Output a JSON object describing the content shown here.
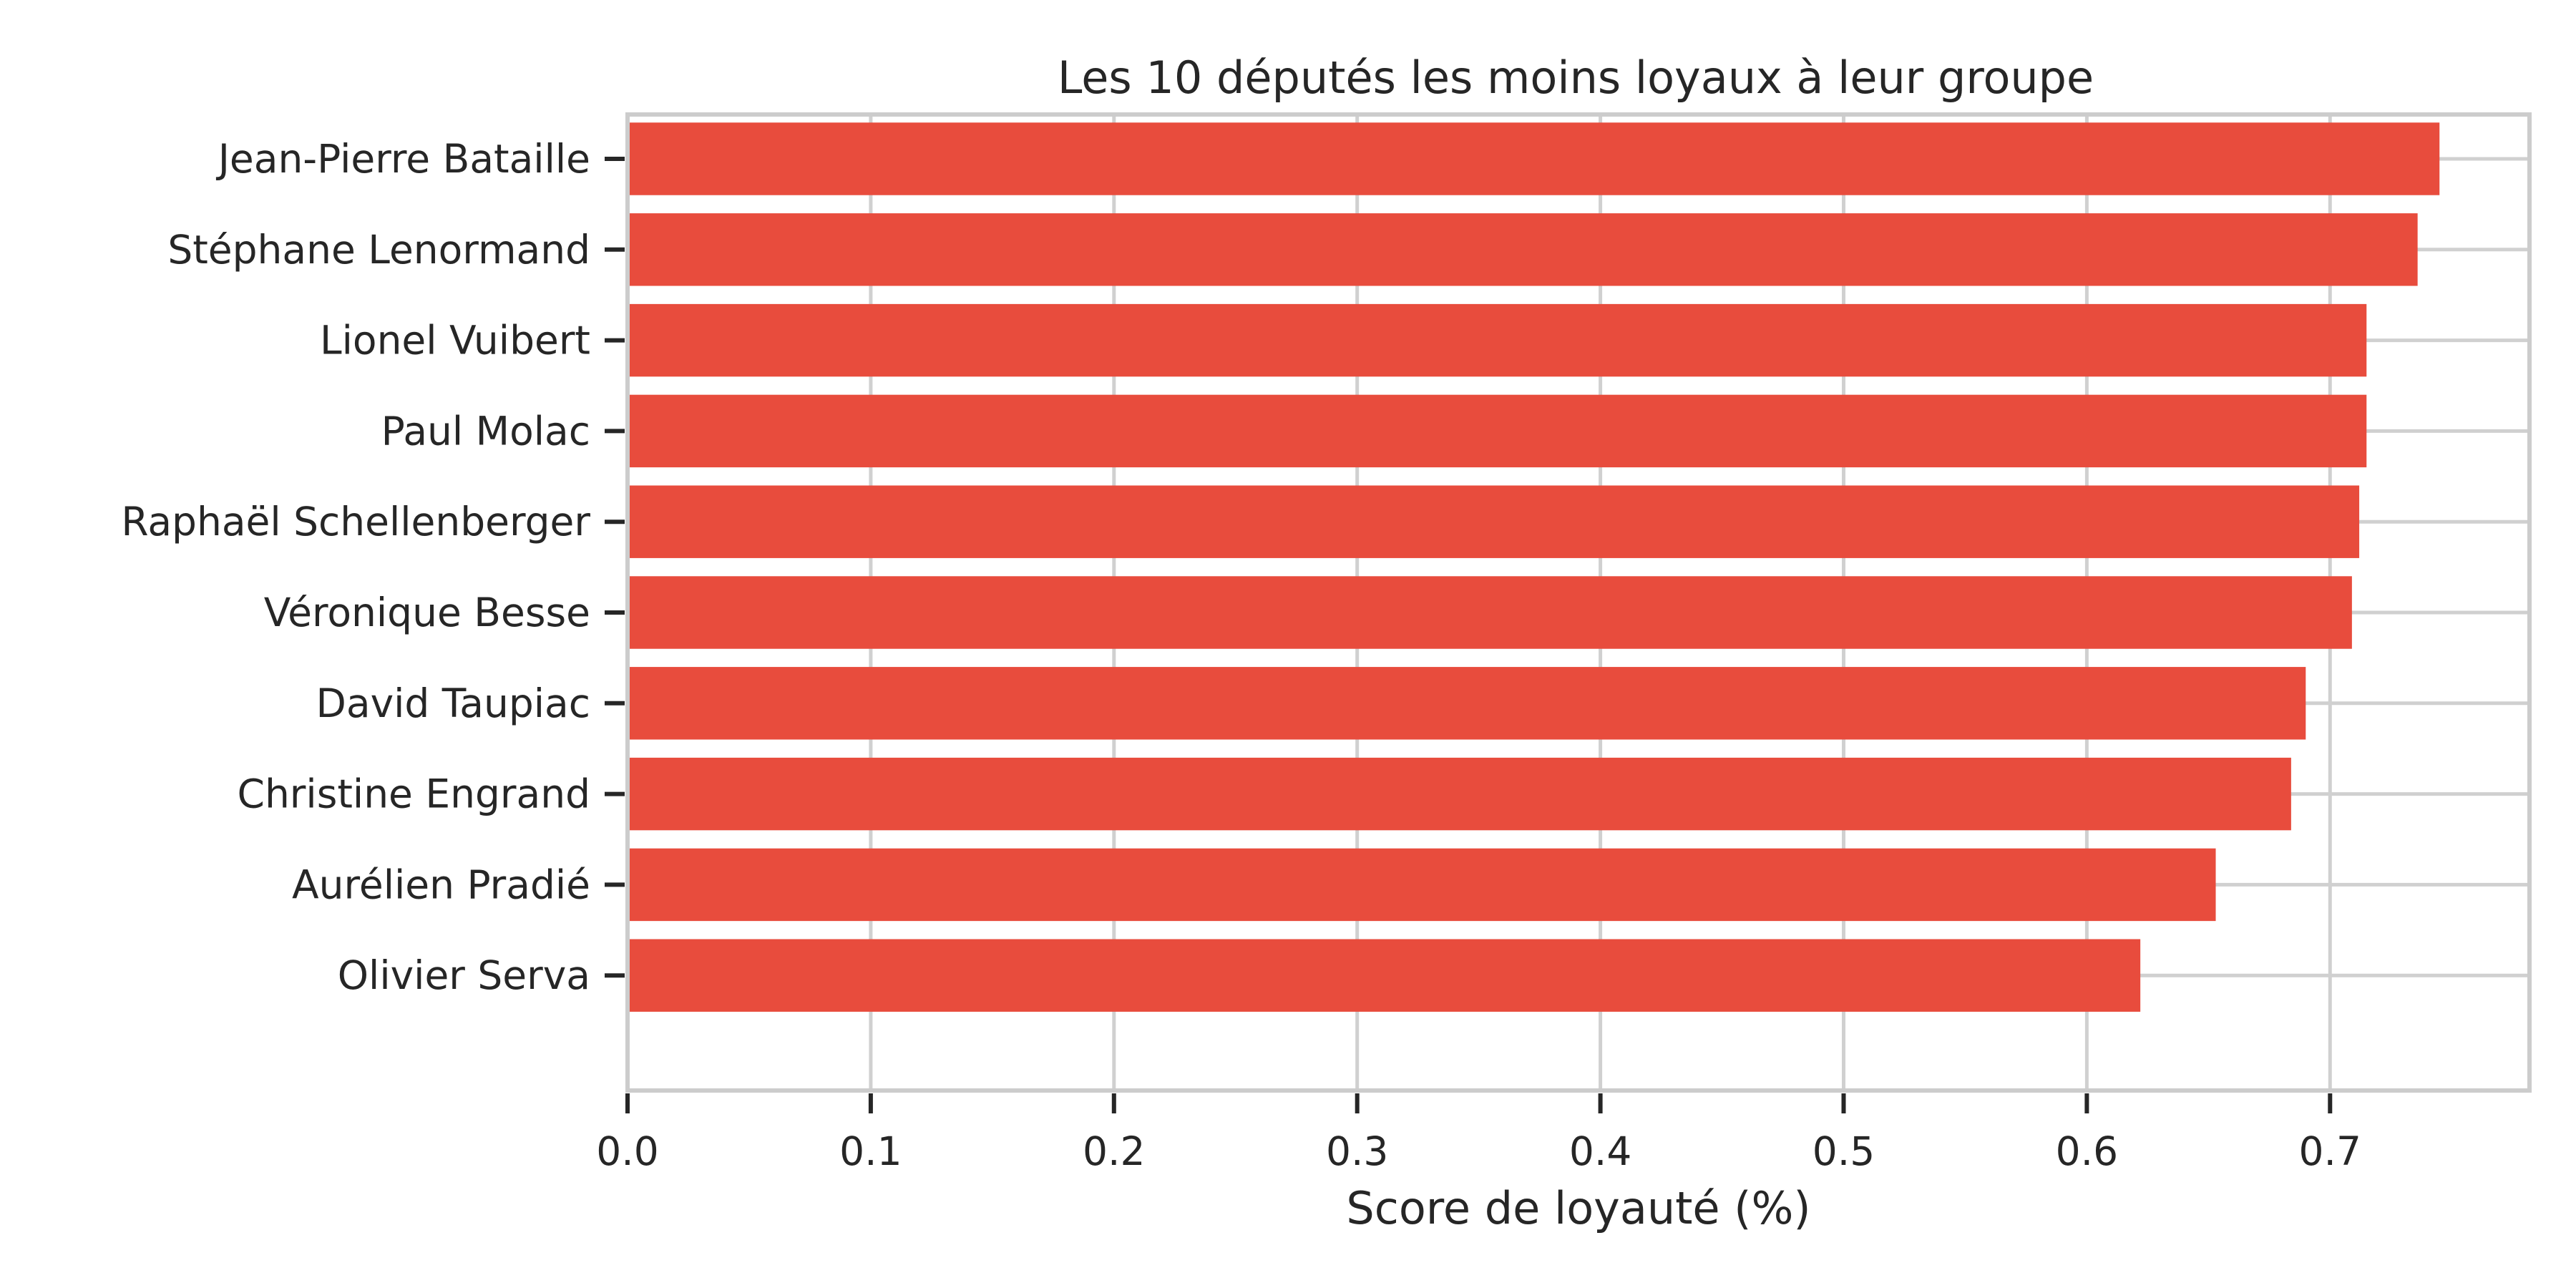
{
  "chart_data": {
    "type": "bar",
    "orientation": "horizontal",
    "title": "Les 10 députés les moins loyaux à leur groupe",
    "xlabel": "Score de loyauté (%)",
    "ylabel": "",
    "categories": [
      "Jean-Pierre Bataille",
      "Stéphane Lenormand",
      "Lionel Vuibert",
      "Paul Molac",
      "Raphaël Schellenberger",
      "Véronique Besse",
      "David Taupiac",
      "Christine Engrand",
      "Aurélien Pradié",
      "Olivier Serva"
    ],
    "values": [
      0.745,
      0.736,
      0.715,
      0.715,
      0.712,
      0.709,
      0.69,
      0.684,
      0.653,
      0.622
    ],
    "xlim": [
      0,
      0.782
    ],
    "xticks": [
      0.0,
      0.1,
      0.2,
      0.3,
      0.4,
      0.5,
      0.6,
      0.7
    ],
    "xtick_labels": [
      "0.0",
      "0.1",
      "0.2",
      "0.3",
      "0.4",
      "0.5",
      "0.6",
      "0.7"
    ],
    "grid": true,
    "legend": "none",
    "colors": {
      "bar": "#e84c3d",
      "grid": "#d0d0d0",
      "frame": "#cccccc",
      "text": "#262626",
      "tick": "#262626"
    }
  }
}
